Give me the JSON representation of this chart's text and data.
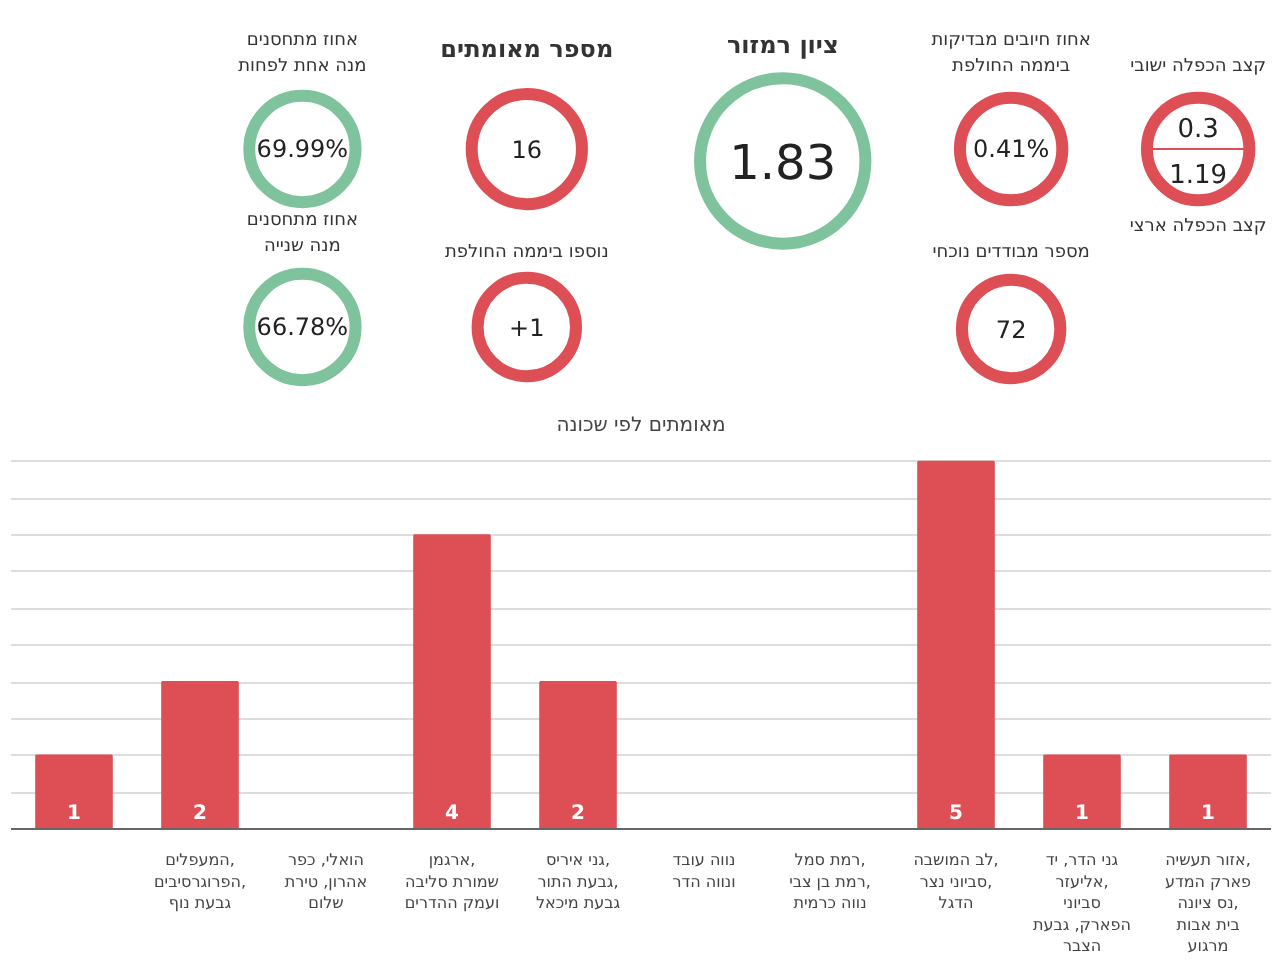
{
  "chart_data": [
    {
      "type": "other",
      "categories": [
        "אחוז מתחסנים\nמנה אחת לפחות",
        "מספר מאומתים",
        "ציון רמזור",
        "אחוז חיובים מבדיקות\nביממה החולפת",
        "קצב הכפלה ישובי",
        "קצב הכפלה ארצי",
        "אחוז מתחסנים\nמנה שנייה",
        "נוספו ביממה החולפת",
        "מספר מבודדים נוכחי"
      ],
      "values": [
        69.99,
        16,
        1.83,
        0.41,
        0.3,
        1.19,
        66.78,
        1,
        72
      ],
      "value_labels": [
        "69.99%",
        "16",
        "1.83",
        "0.41%",
        "0.3",
        "1.19",
        "66.78%",
        "+1",
        "72"
      ],
      "colors": [
        "#7fc39c",
        "#dd4f55",
        "#7fc39c",
        "#dd4f55",
        "#dd4f55",
        "#dd4f55",
        "#7fc39c",
        "#dd4f55",
        "#dd4f55"
      ]
    },
    {
      "type": "bar",
      "title": "מאומתים לפי שכונה",
      "categories": [
        null,
        "המעפלים, הפרוגרסיבים, גבעת נוף",
        "הואלי, כפר אהרון, טירת שלום",
        "ארגמן, שמורת סליבה ועמק ההדרים",
        "גני איריס, גבעת התור, גבעת מיכאל",
        "נווה עובד ונווה הדר",
        "רמת סמל, רמת בן צבי, נווה כרמית",
        "לב המושבה, סביוני נצר, הדגל",
        "גני הדר, יד אליעזר, סביוני הפארק, גבעת הצבר",
        "אזור תעשיה, פארק המדע נס ציונה, בית אבות מרגוע"
      ],
      "values": [
        1,
        2,
        0,
        4,
        2,
        0,
        0,
        5,
        1,
        1
      ],
      "value_labels": [
        "1",
        "2",
        null,
        "4",
        "2",
        null,
        null,
        "5",
        "1",
        "1"
      ],
      "color": "#dd4f55",
      "yticks": [
        {
          "value": 0,
          "label": null
        },
        {
          "value": 0.5,
          "label": null
        },
        {
          "value": 1,
          "label": null
        },
        {
          "value": 1.5,
          "label": null
        },
        {
          "value": 2,
          "label": null
        },
        {
          "value": 2.5,
          "label": null
        },
        {
          "value": 3,
          "label": null
        },
        {
          "value": 3.5,
          "label": null
        },
        {
          "value": 4,
          "label": null
        },
        {
          "value": 4.5,
          "label": null
        },
        {
          "value": 5,
          "label": null
        }
      ],
      "tick_labels": "x",
      "grid": "y"
    }
  ]
}
